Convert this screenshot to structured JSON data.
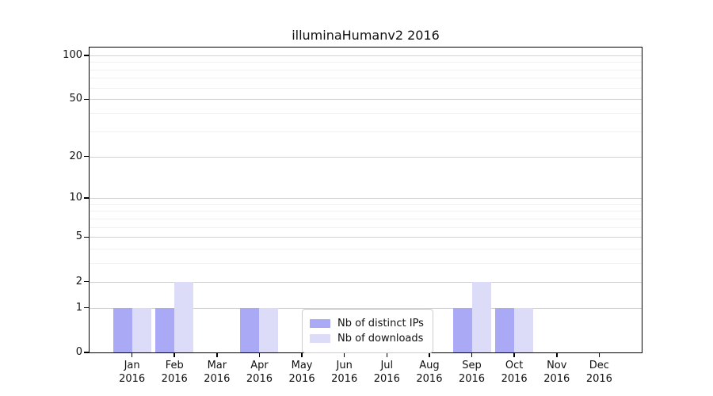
{
  "chart_data": {
    "type": "bar",
    "title": "illuminaHumanv2 2016",
    "categories": [
      "Jan 2016",
      "Feb 2016",
      "Mar 2016",
      "Apr 2016",
      "May 2016",
      "Jun 2016",
      "Jul 2016",
      "Aug 2016",
      "Sep 2016",
      "Oct 2016",
      "Nov 2016",
      "Dec 2016"
    ],
    "series": [
      {
        "name": "Nb of distinct IPs",
        "color": "#a9a9f5",
        "values": [
          1,
          1,
          0,
          1,
          0,
          0,
          0,
          0,
          1,
          1,
          0,
          0
        ]
      },
      {
        "name": "Nb of downloads",
        "color": "#dcdcf9",
        "values": [
          1,
          2,
          0,
          1,
          0,
          0,
          0,
          0,
          2,
          1,
          0,
          0
        ]
      }
    ],
    "yscale": "log1p",
    "yticks": [
      0,
      1,
      2,
      5,
      10,
      20,
      50,
      100
    ],
    "minor_yticks": [
      3,
      4,
      6,
      7,
      8,
      9,
      30,
      40,
      60,
      70,
      80,
      90
    ],
    "ymax": 113,
    "grid": "on",
    "legend_position": "bottom-center",
    "axis_color": "#000000"
  }
}
